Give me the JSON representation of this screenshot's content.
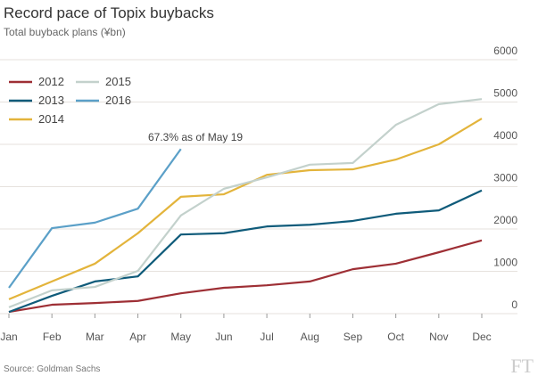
{
  "chart_data": {
    "type": "line",
    "title": "Record pace of Topix buybacks",
    "subtitle": "Total buyback plans (¥bn)",
    "annotation": "67.3% as of May 19",
    "source": "Source: Goldman Sachs",
    "logo": "FT",
    "categories": [
      "Jan",
      "Feb",
      "Mar",
      "Apr",
      "May",
      "Jun",
      "Jul",
      "Aug",
      "Sep",
      "Oct",
      "Nov",
      "Dec"
    ],
    "series": [
      {
        "name": "2012",
        "color": "#9e2f35",
        "values": [
          40,
          210,
          250,
          300,
          480,
          610,
          670,
          760,
          1050,
          1180,
          1450,
          1730
        ]
      },
      {
        "name": "2013",
        "color": "#0f5b7a",
        "values": [
          40,
          420,
          760,
          880,
          1870,
          1900,
          2060,
          2100,
          2190,
          2360,
          2440,
          2910
        ]
      },
      {
        "name": "2014",
        "color": "#e3b43b",
        "values": [
          340,
          760,
          1180,
          1900,
          2760,
          2820,
          3280,
          3390,
          3410,
          3640,
          4000,
          4610
        ]
      },
      {
        "name": "2015",
        "color": "#c3d1cc",
        "values": [
          150,
          550,
          630,
          1010,
          2320,
          2950,
          3220,
          3520,
          3560,
          4460,
          4950,
          5070
        ]
      },
      {
        "name": "2016",
        "color": "#5ba0c8",
        "values": [
          610,
          2020,
          2150,
          2480,
          3890,
          null,
          null,
          null,
          null,
          null,
          null,
          null
        ]
      }
    ],
    "ylim": [
      0,
      6000
    ],
    "yticks": [
      0,
      1000,
      2000,
      3000,
      4000,
      5000,
      6000
    ],
    "grid": true
  }
}
